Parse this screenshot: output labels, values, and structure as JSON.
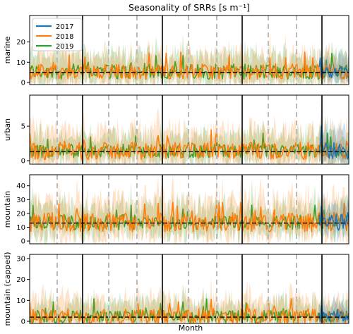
{
  "figure": {
    "title": "Seasonality of SRRs [s m⁻¹]",
    "xlabel": "Month"
  },
  "colors": {
    "2017": "#1f77b4",
    "2018": "#ff7f0e",
    "2019": "#2ca02c",
    "reference_line": "#000000",
    "season_dashes": "#bbbbbb",
    "year_dividers": "#000000"
  },
  "chart_data": [
    {
      "type": "line",
      "ylabel": "marine",
      "ylim": [
        -1,
        33
      ],
      "yticks": [
        0,
        10,
        20
      ],
      "reference_value": 5,
      "legend": {
        "position": "top-left",
        "entries": [
          "2017",
          "2018",
          "2019"
        ]
      },
      "series": [
        {
          "name": "2017",
          "typical_range": [
            0,
            12
          ],
          "months_shown": "last ~3 months"
        },
        {
          "name": "2018",
          "typical_range": [
            0,
            15
          ]
        },
        {
          "name": "2019",
          "typical_range": [
            0,
            15
          ]
        }
      ]
    },
    {
      "type": "line",
      "ylabel": "urban",
      "ylim": [
        -0.5,
        9.5
      ],
      "yticks": [
        0,
        5
      ],
      "reference_value": 1.3,
      "series": [
        {
          "name": "2017",
          "typical_range": [
            0,
            5
          ]
        },
        {
          "name": "2018",
          "typical_range": [
            0,
            5
          ]
        },
        {
          "name": "2019",
          "typical_range": [
            0,
            4
          ]
        }
      ]
    },
    {
      "type": "line",
      "ylabel": "mountain",
      "ylim": [
        -2,
        48
      ],
      "yticks": [
        0,
        10,
        20,
        30,
        40
      ],
      "reference_value": 13,
      "series": [
        {
          "name": "2017",
          "typical_range": [
            2,
            25
          ]
        },
        {
          "name": "2018",
          "typical_range": [
            0,
            28
          ]
        },
        {
          "name": "2019",
          "typical_range": [
            4,
            26
          ]
        }
      ]
    },
    {
      "type": "line",
      "ylabel": "mountain (capped)",
      "ylim": [
        -1,
        32
      ],
      "yticks": [
        0,
        10,
        20,
        30
      ],
      "reference_value": 2,
      "series": [
        {
          "name": "2017",
          "typical_range": [
            0,
            10
          ]
        },
        {
          "name": "2018",
          "typical_range": [
            0,
            15
          ]
        },
        {
          "name": "2019",
          "typical_range": [
            0,
            12
          ]
        }
      ]
    }
  ]
}
